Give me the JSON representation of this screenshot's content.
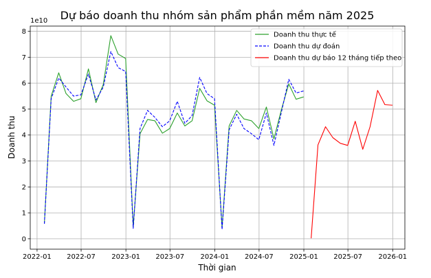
{
  "chart_data": {
    "type": "line",
    "title": "Dự báo doanh thu nhóm sản phẩm phần mềm năm 2025",
    "xlabel": "Thời gian",
    "ylabel": "Doanh thu",
    "y_scale_label": "1e10",
    "ylim": [
      -0.4,
      8.2
    ],
    "xlim": [
      "2021-12-04",
      "2026-02-20"
    ],
    "grid": true,
    "legend_position": "top-right",
    "x_ticks": [
      "2022-01",
      "2022-07",
      "2023-01",
      "2023-07",
      "2024-01",
      "2024-07",
      "2025-01",
      "2025-07",
      "2026-01"
    ],
    "y_ticks": [
      "0",
      "1",
      "2",
      "3",
      "4",
      "5",
      "6",
      "7",
      "8"
    ],
    "y_tick_values": [
      0,
      1,
      2,
      3,
      4,
      5,
      6,
      7,
      8
    ],
    "series": [
      {
        "name": "Doanh thu thực tế",
        "color": "#2ca02c",
        "style": "solid",
        "points": [
          [
            "2022-01-31",
            0.58
          ],
          [
            "2022-02-28",
            5.5
          ],
          [
            "2022-03-31",
            6.4
          ],
          [
            "2022-04-30",
            5.6
          ],
          [
            "2022-05-31",
            5.3
          ],
          [
            "2022-06-30",
            5.4
          ],
          [
            "2022-07-31",
            6.55
          ],
          [
            "2022-08-31",
            5.25
          ],
          [
            "2022-09-30",
            5.95
          ],
          [
            "2022-10-31",
            7.83
          ],
          [
            "2022-11-30",
            7.12
          ],
          [
            "2022-12-31",
            6.95
          ],
          [
            "2023-01-31",
            0.45
          ],
          [
            "2023-02-28",
            4.05
          ],
          [
            "2023-03-31",
            4.6
          ],
          [
            "2023-04-30",
            4.55
          ],
          [
            "2023-05-31",
            4.07
          ],
          [
            "2023-06-30",
            4.25
          ],
          [
            "2023-07-31",
            4.85
          ],
          [
            "2023-08-31",
            4.35
          ],
          [
            "2023-09-30",
            4.55
          ],
          [
            "2023-10-31",
            5.8
          ],
          [
            "2023-11-30",
            5.32
          ],
          [
            "2023-12-31",
            5.15
          ],
          [
            "2024-01-31",
            0.43
          ],
          [
            "2024-02-29",
            4.35
          ],
          [
            "2024-03-31",
            4.95
          ],
          [
            "2024-04-30",
            4.62
          ],
          [
            "2024-05-31",
            4.55
          ],
          [
            "2024-06-30",
            4.25
          ],
          [
            "2024-07-31",
            5.08
          ],
          [
            "2024-08-31",
            3.85
          ],
          [
            "2024-09-30",
            4.95
          ],
          [
            "2024-10-31",
            5.97
          ],
          [
            "2024-11-30",
            5.38
          ],
          [
            "2024-12-31",
            5.47
          ]
        ]
      },
      {
        "name": "Doanh thu dự đoán",
        "color": "#0000ff",
        "style": "dashed",
        "points": [
          [
            "2022-01-31",
            0.58
          ],
          [
            "2022-02-28",
            5.4
          ],
          [
            "2022-03-31",
            6.2
          ],
          [
            "2022-04-30",
            5.85
          ],
          [
            "2022-05-31",
            5.5
          ],
          [
            "2022-06-30",
            5.55
          ],
          [
            "2022-07-31",
            6.35
          ],
          [
            "2022-08-31",
            5.35
          ],
          [
            "2022-09-30",
            5.85
          ],
          [
            "2022-10-31",
            7.22
          ],
          [
            "2022-11-30",
            6.6
          ],
          [
            "2022-12-31",
            6.45
          ],
          [
            "2023-01-31",
            0.4
          ],
          [
            "2023-02-28",
            4.25
          ],
          [
            "2023-03-31",
            4.95
          ],
          [
            "2023-04-30",
            4.68
          ],
          [
            "2023-05-31",
            4.32
          ],
          [
            "2023-06-30",
            4.55
          ],
          [
            "2023-07-31",
            5.3
          ],
          [
            "2023-08-31",
            4.45
          ],
          [
            "2023-09-30",
            4.75
          ],
          [
            "2023-10-31",
            6.22
          ],
          [
            "2023-11-30",
            5.6
          ],
          [
            "2023-12-31",
            5.4
          ],
          [
            "2024-01-31",
            0.36
          ],
          [
            "2024-02-29",
            4.2
          ],
          [
            "2024-03-31",
            4.8
          ],
          [
            "2024-04-30",
            4.25
          ],
          [
            "2024-05-31",
            4.05
          ],
          [
            "2024-06-30",
            3.82
          ],
          [
            "2024-07-31",
            4.85
          ],
          [
            "2024-08-31",
            3.6
          ],
          [
            "2024-09-30",
            4.85
          ],
          [
            "2024-10-31",
            6.15
          ],
          [
            "2024-11-30",
            5.62
          ],
          [
            "2024-12-31",
            5.7
          ]
        ]
      },
      {
        "name": "Doanh thu dự báo 12 tháng tiếp theo",
        "color": "#ff0000",
        "style": "solid",
        "points": [
          [
            "2025-01-31",
            0.02
          ],
          [
            "2025-02-28",
            3.62
          ],
          [
            "2025-03-31",
            4.32
          ],
          [
            "2025-04-30",
            3.9
          ],
          [
            "2025-05-31",
            3.68
          ],
          [
            "2025-06-30",
            3.6
          ],
          [
            "2025-07-31",
            4.53
          ],
          [
            "2025-08-31",
            3.45
          ],
          [
            "2025-09-30",
            4.32
          ],
          [
            "2025-10-31",
            5.72
          ],
          [
            "2025-11-30",
            5.17
          ],
          [
            "2025-12-31",
            5.15
          ]
        ]
      }
    ]
  }
}
